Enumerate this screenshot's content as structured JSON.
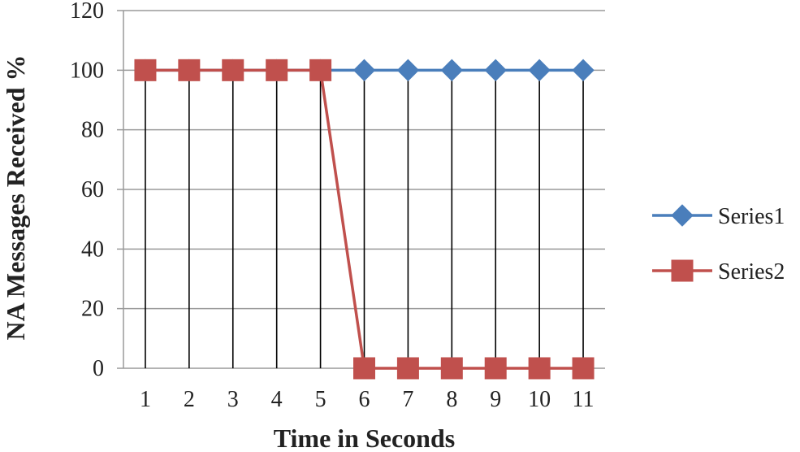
{
  "chart_data": {
    "type": "line",
    "xlabel": "Time in Seconds",
    "ylabel": "NA Messages Received %",
    "categories": [
      "1",
      "2",
      "3",
      "4",
      "5",
      "6",
      "7",
      "8",
      "9",
      "10",
      "11"
    ],
    "ylim": [
      0,
      120
    ],
    "yticks": [
      0,
      20,
      40,
      60,
      80,
      100,
      120
    ],
    "grid": true,
    "legend_position": "right",
    "series": [
      {
        "name": "Series1",
        "values": [
          100,
          100,
          100,
          100,
          100,
          100,
          100,
          100,
          100,
          100,
          100
        ],
        "color": "#4a7ebb",
        "marker": "diamond"
      },
      {
        "name": "Series2",
        "values": [
          100,
          100,
          100,
          100,
          100,
          0,
          0,
          0,
          0,
          0,
          0
        ],
        "color": "#c0504d",
        "marker": "square"
      }
    ]
  }
}
